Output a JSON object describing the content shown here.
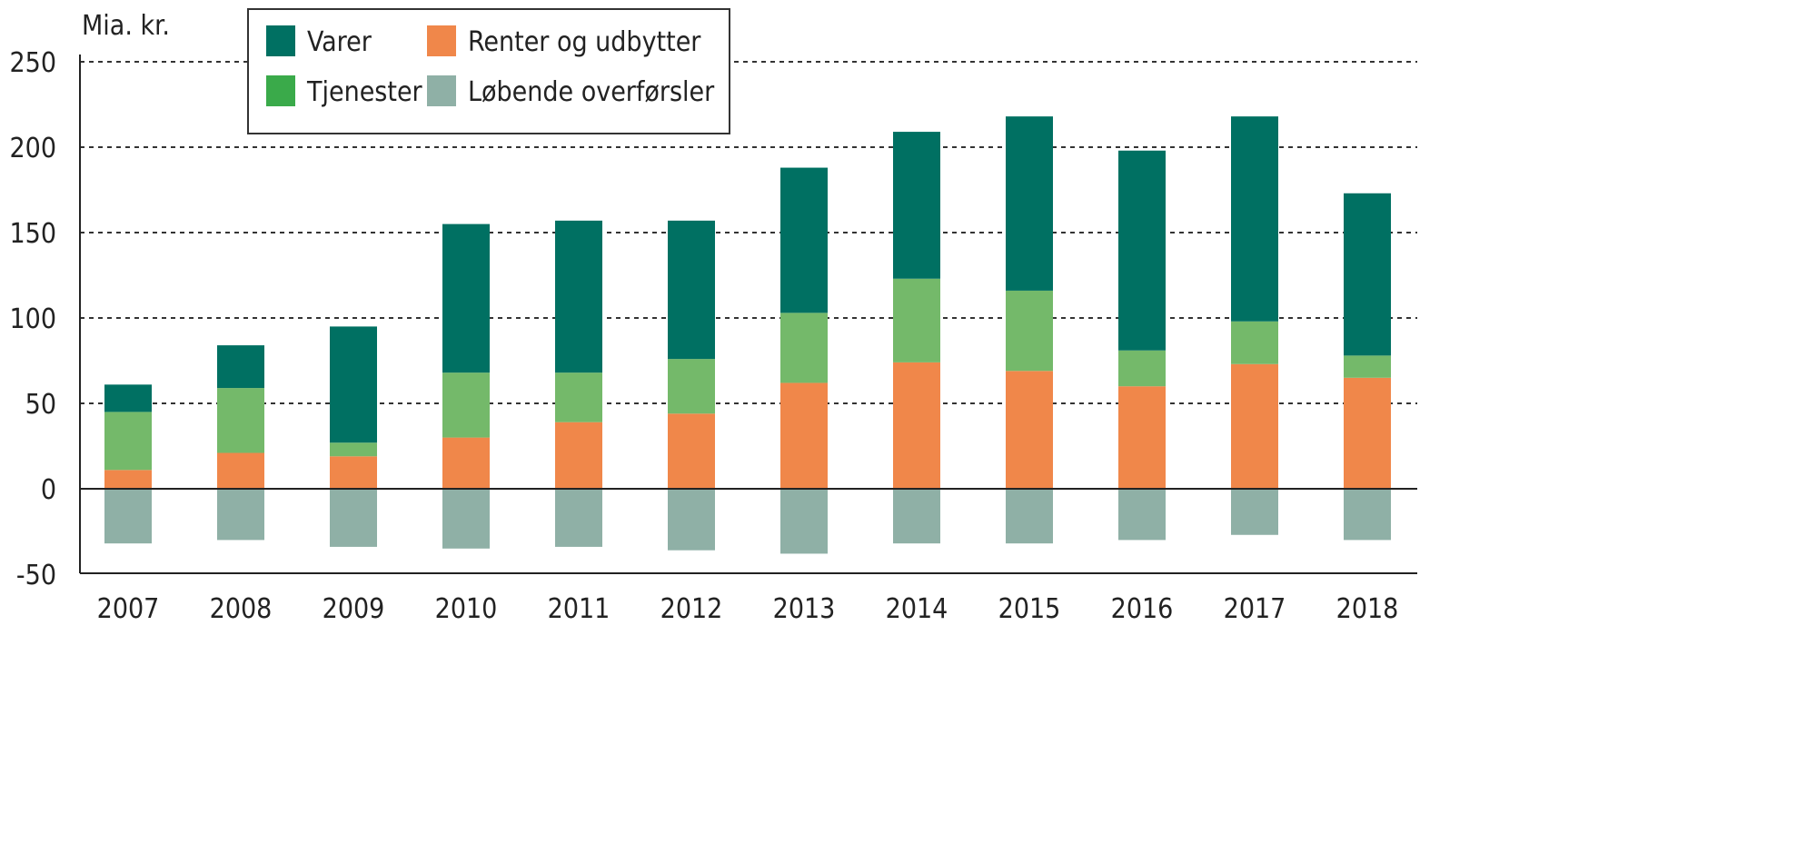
{
  "chart_data": {
    "type": "bar",
    "stacked": true,
    "ylabel": "Mia. kr.",
    "ylim": [
      -50,
      250
    ],
    "yticks": [
      250,
      200,
      150,
      100,
      50,
      0,
      -50
    ],
    "grid": true,
    "legend_placement": "top-left",
    "categories": [
      "2007",
      "2008",
      "2009",
      "2010",
      "2011",
      "2012",
      "2013",
      "2014",
      "2015",
      "2016",
      "2017",
      "2018"
    ],
    "series": [
      {
        "name": "Renter og udbytter",
        "color": "#f0874a",
        "values": [
          11,
          21,
          19,
          30,
          39,
          44,
          62,
          74,
          69,
          60,
          73,
          65
        ]
      },
      {
        "name": "Tjenester",
        "color": "#74b96a",
        "legend_color": "#3aaa4a",
        "values": [
          34,
          38,
          8,
          38,
          29,
          32,
          41,
          49,
          47,
          21,
          25,
          13
        ]
      },
      {
        "name": "Varer",
        "color": "#007062",
        "values": [
          16,
          25,
          68,
          87,
          89,
          81,
          85,
          86,
          102,
          117,
          120,
          95
        ]
      },
      {
        "name": "Løbende overførsler",
        "color": "#8fb0a6",
        "values": [
          -32,
          -30,
          -34,
          -35,
          -34,
          -36,
          -38,
          -32,
          -32,
          -30,
          -27,
          -30
        ]
      }
    ]
  }
}
